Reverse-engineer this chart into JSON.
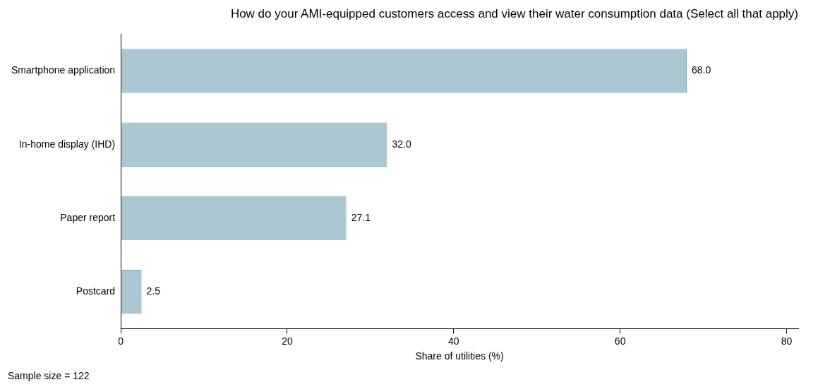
{
  "chart_data": {
    "type": "bar",
    "orientation": "horizontal",
    "title": "How do your AMI-equipped customers access and view their water consumption data (Select all that apply)",
    "xlabel": "Share of utilities (%)",
    "categories": [
      "Smartphone application",
      "In-home display (IHD)",
      "Paper report",
      "Postcard"
    ],
    "values": [
      68.0,
      32.0,
      27.1,
      2.5
    ],
    "color": "#abc7d2",
    "xlim": [
      0,
      81.4
    ],
    "xticks": [
      0,
      20,
      40,
      60,
      80
    ],
    "grid": false,
    "value_labels": [
      "68.0",
      "32.0",
      "27.1",
      "2.5"
    ],
    "annotations": [
      "Sample size = 122"
    ]
  }
}
